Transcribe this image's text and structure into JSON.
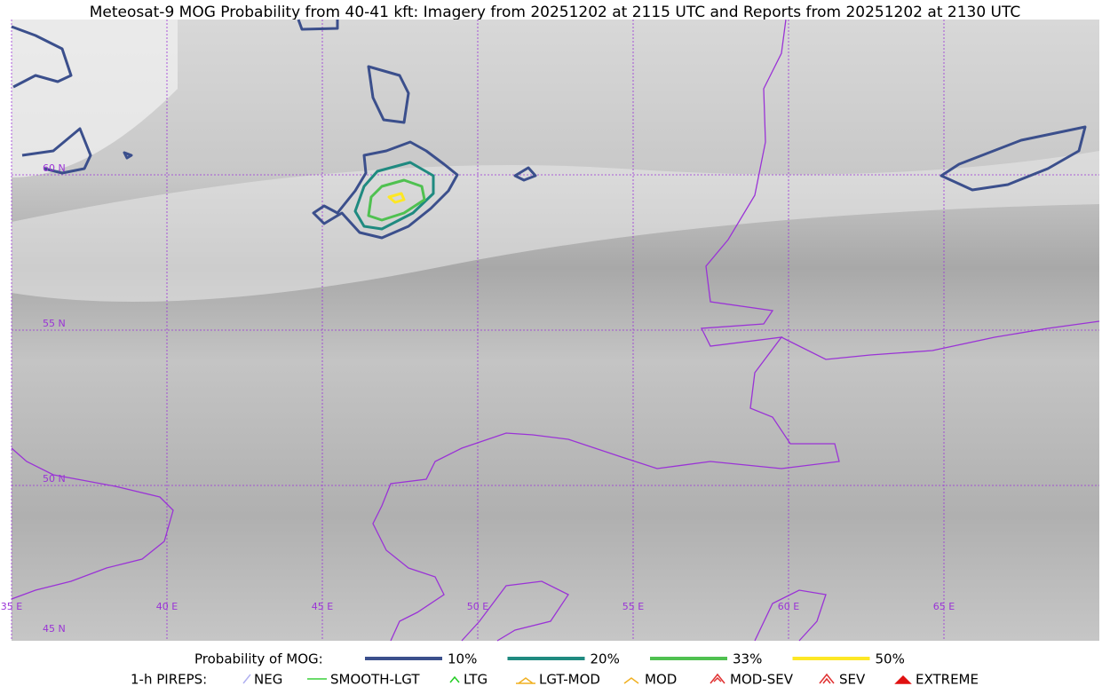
{
  "title": "Meteosat-9 MOG Probability from 40-41 kft: Imagery from 20251202 at 2115 UTC and Reports from 20251202 at 2130 UTC",
  "lat_labels": [
    "60 N",
    "55 N",
    "50 N",
    "45 N"
  ],
  "lon_labels": [
    "35 E",
    "40 E",
    "45 E",
    "50 E",
    "55 E",
    "60 E",
    "65 E"
  ],
  "legend": {
    "title": "Probability of MOG:",
    "items": [
      "10%",
      "20%",
      "33%",
      "50%"
    ]
  },
  "pireps": {
    "title": "1-h PIREPS:",
    "items": [
      "NEG",
      "SMOOTH-LGT",
      "LTG",
      "LGT-MOD",
      "MOD",
      "MOD-SEV",
      "SEV",
      "EXTREME"
    ]
  }
}
